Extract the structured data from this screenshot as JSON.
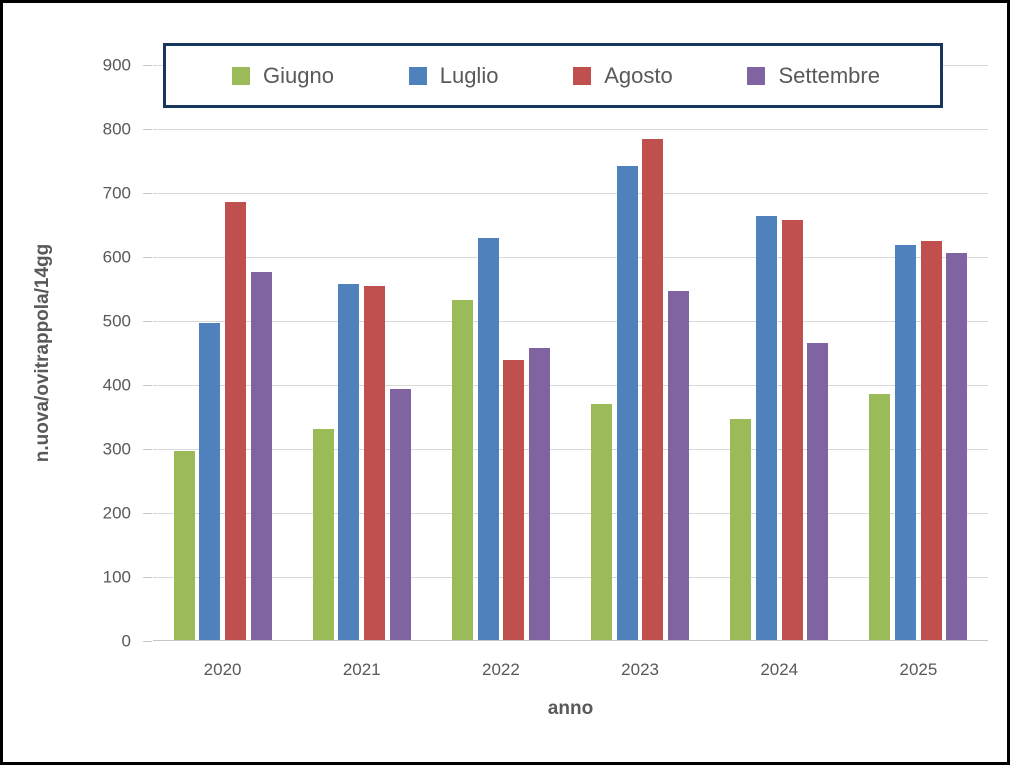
{
  "frame": {
    "border_color": "#000000",
    "background_color": "#ffffff"
  },
  "chart_data": {
    "type": "bar",
    "title": "",
    "xlabel": "anno",
    "ylabel": "n.uova/ovitrappola/14gg",
    "categories": [
      "2020",
      "2021",
      "2022",
      "2023",
      "2024",
      "2025"
    ],
    "series": [
      {
        "name": "Giugno",
        "color": "#9BBB59",
        "values": [
          295,
          330,
          532,
          368,
          346,
          384
        ]
      },
      {
        "name": "Luglio",
        "color": "#4F81BD",
        "values": [
          495,
          556,
          628,
          741,
          663,
          617
        ]
      },
      {
        "name": "Agosto",
        "color": "#C0504D",
        "values": [
          684,
          553,
          437,
          783,
          657,
          624
        ]
      },
      {
        "name": "Settembre",
        "color": "#8064A2",
        "values": [
          575,
          392,
          457,
          546,
          464,
          604
        ]
      }
    ],
    "ylim": [
      0,
      900
    ],
    "yticks": [
      0,
      100,
      200,
      300,
      400,
      500,
      600,
      700,
      800,
      900
    ],
    "grid": true,
    "gridline_color": "#D9D9D9",
    "axis_text_color": "#595959",
    "legend_position": "top",
    "legend_border_color": "#17375E"
  }
}
